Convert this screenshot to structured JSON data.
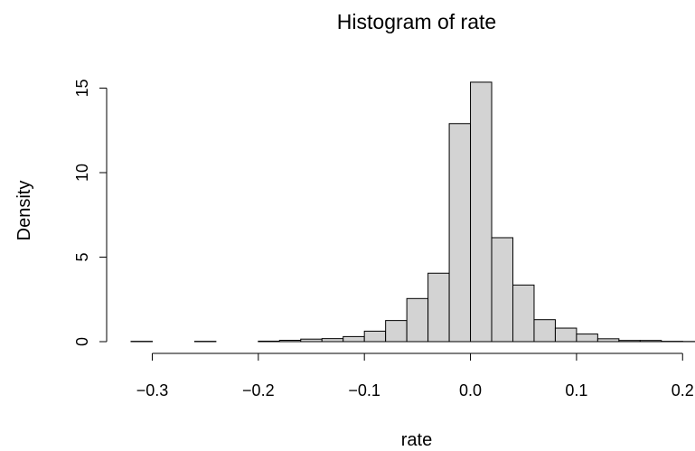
{
  "chart_data": {
    "type": "bar",
    "title": "Histogram of rate",
    "xlabel": "rate",
    "ylabel": "Density",
    "bar_color": "#d3d3d3",
    "bar_edge_color": "#000000",
    "grid": false,
    "xlim": [
      -0.32,
      0.21
    ],
    "ylim": [
      0,
      15.4
    ],
    "x_ticks": [
      {
        "value": -0.3,
        "label": "−0.3"
      },
      {
        "value": -0.2,
        "label": "−0.2"
      },
      {
        "value": -0.1,
        "label": "−0.1"
      },
      {
        "value": 0.0,
        "label": "0.0"
      },
      {
        "value": 0.1,
        "label": "0.1"
      },
      {
        "value": 0.2,
        "label": "0.2"
      }
    ],
    "y_ticks": [
      {
        "value": 0,
        "label": "0"
      },
      {
        "value": 5,
        "label": "5"
      },
      {
        "value": 10,
        "label": "10"
      },
      {
        "value": 15,
        "label": "15"
      }
    ],
    "bins": [
      {
        "start": -0.32,
        "end": -0.3,
        "density": 0.02
      },
      {
        "start": -0.3,
        "end": -0.28,
        "density": 0.0
      },
      {
        "start": -0.28,
        "end": -0.26,
        "density": 0.0
      },
      {
        "start": -0.26,
        "end": -0.24,
        "density": 0.02
      },
      {
        "start": -0.24,
        "end": -0.22,
        "density": 0.0
      },
      {
        "start": -0.22,
        "end": -0.2,
        "density": 0.0
      },
      {
        "start": -0.2,
        "end": -0.18,
        "density": 0.03
      },
      {
        "start": -0.18,
        "end": -0.16,
        "density": 0.08
      },
      {
        "start": -0.16,
        "end": -0.14,
        "density": 0.15
      },
      {
        "start": -0.14,
        "end": -0.12,
        "density": 0.18
      },
      {
        "start": -0.12,
        "end": -0.1,
        "density": 0.3
      },
      {
        "start": -0.1,
        "end": -0.08,
        "density": 0.62
      },
      {
        "start": -0.08,
        "end": -0.06,
        "density": 1.25
      },
      {
        "start": -0.06,
        "end": -0.04,
        "density": 2.55
      },
      {
        "start": -0.04,
        "end": -0.02,
        "density": 4.05
      },
      {
        "start": -0.02,
        "end": 0.0,
        "density": 12.9
      },
      {
        "start": 0.0,
        "end": 0.02,
        "density": 15.35
      },
      {
        "start": 0.02,
        "end": 0.04,
        "density": 6.15
      },
      {
        "start": 0.04,
        "end": 0.06,
        "density": 3.35
      },
      {
        "start": 0.06,
        "end": 0.08,
        "density": 1.3
      },
      {
        "start": 0.08,
        "end": 0.1,
        "density": 0.8
      },
      {
        "start": 0.1,
        "end": 0.12,
        "density": 0.45
      },
      {
        "start": 0.12,
        "end": 0.14,
        "density": 0.17
      },
      {
        "start": 0.14,
        "end": 0.16,
        "density": 0.07
      },
      {
        "start": 0.16,
        "end": 0.18,
        "density": 0.07
      },
      {
        "start": 0.18,
        "end": 0.2,
        "density": 0.02
      },
      {
        "start": 0.2,
        "end": 0.22,
        "density": 0.01
      }
    ]
  }
}
